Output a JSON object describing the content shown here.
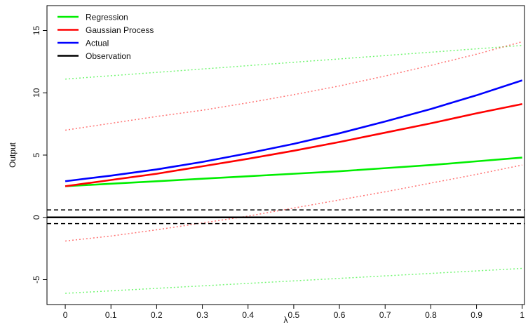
{
  "chart_data": {
    "type": "line",
    "title": "",
    "xlabel": "λ",
    "ylabel": "Output",
    "xlim": [
      -0.04,
      1.005
    ],
    "ylim": [
      -7.0,
      17.0
    ],
    "xticks": [
      0,
      0.1,
      0.2,
      0.3,
      0.4,
      0.5,
      0.6,
      0.7,
      0.8,
      0.9,
      1
    ],
    "xtick_labels": [
      "0",
      "0.1",
      "0.2",
      "0.3",
      "0.4",
      "0.5",
      "0.6",
      "0.7",
      "0.8",
      "0.9",
      "1"
    ],
    "yticks": [
      -5,
      0,
      5,
      10,
      15
    ],
    "ytick_labels": [
      "-5",
      "0",
      "5",
      "10",
      "15"
    ],
    "y_tick_label_rotation": "vertical",
    "grid": false,
    "legend": {
      "placement": "top-left",
      "entries": [
        "Regression",
        "Gaussian Process",
        "Actual",
        "Observation"
      ]
    },
    "series": [
      {
        "name": "Regression",
        "color": "#00ee00",
        "style": "solid",
        "x": [
          0,
          0.1,
          0.2,
          0.3,
          0.4,
          0.5,
          0.6,
          0.7,
          0.8,
          0.9,
          1.0
        ],
        "y": [
          2.5,
          2.7,
          2.9,
          3.1,
          3.3,
          3.5,
          3.7,
          3.95,
          4.2,
          4.5,
          4.8
        ]
      },
      {
        "name": "Regression upper bound",
        "color": "#00ee00",
        "style": "dotted",
        "x": [
          0,
          1.0
        ],
        "y": [
          11.1,
          13.8
        ]
      },
      {
        "name": "Regression lower bound",
        "color": "#00ee00",
        "style": "dotted",
        "x": [
          0,
          1.0
        ],
        "y": [
          -6.1,
          -4.1
        ]
      },
      {
        "name": "Gaussian Process",
        "color": "#ff0000",
        "style": "solid",
        "x": [
          0,
          0.1,
          0.2,
          0.3,
          0.4,
          0.5,
          0.6,
          0.7,
          0.8,
          0.9,
          1.0
        ],
        "y": [
          2.5,
          3.0,
          3.5,
          4.1,
          4.7,
          5.35,
          6.05,
          6.8,
          7.55,
          8.35,
          9.1
        ]
      },
      {
        "name": "Gaussian Process upper bound",
        "color": "#ff0000",
        "style": "dotted",
        "x": [
          0,
          0.1,
          0.2,
          0.3,
          0.4,
          0.5,
          0.6,
          0.7,
          0.8,
          0.9,
          1.0
        ],
        "y": [
          7.0,
          7.55,
          8.1,
          8.6,
          9.2,
          9.85,
          10.55,
          11.35,
          12.2,
          13.1,
          14.1
        ]
      },
      {
        "name": "Gaussian Process lower bound",
        "color": "#ff0000",
        "style": "dotted",
        "x": [
          0,
          0.1,
          0.2,
          0.3,
          0.4,
          0.5,
          0.6,
          0.7,
          0.8,
          0.9,
          1.0
        ],
        "y": [
          -1.9,
          -1.5,
          -1.0,
          -0.45,
          0.1,
          0.75,
          1.4,
          2.05,
          2.75,
          3.45,
          4.2
        ]
      },
      {
        "name": "Actual",
        "color": "#0000ff",
        "style": "solid",
        "x": [
          0,
          0.1,
          0.2,
          0.3,
          0.4,
          0.5,
          0.6,
          0.7,
          0.8,
          0.9,
          1.0
        ],
        "y": [
          2.9,
          3.35,
          3.85,
          4.45,
          5.15,
          5.9,
          6.75,
          7.7,
          8.7,
          9.8,
          11.0
        ]
      },
      {
        "name": "Observation",
        "color": "#000000",
        "style": "solid",
        "x": [
          -0.04,
          1.005
        ],
        "y": [
          0,
          0
        ]
      },
      {
        "name": "Observation upper bound",
        "color": "#000000",
        "style": "dashed",
        "x": [
          -0.04,
          1.005
        ],
        "y": [
          0.6,
          0.6
        ]
      },
      {
        "name": "Observation lower bound",
        "color": "#000000",
        "style": "dashed",
        "x": [
          -0.04,
          1.005
        ],
        "y": [
          -0.5,
          -0.5
        ]
      }
    ]
  }
}
